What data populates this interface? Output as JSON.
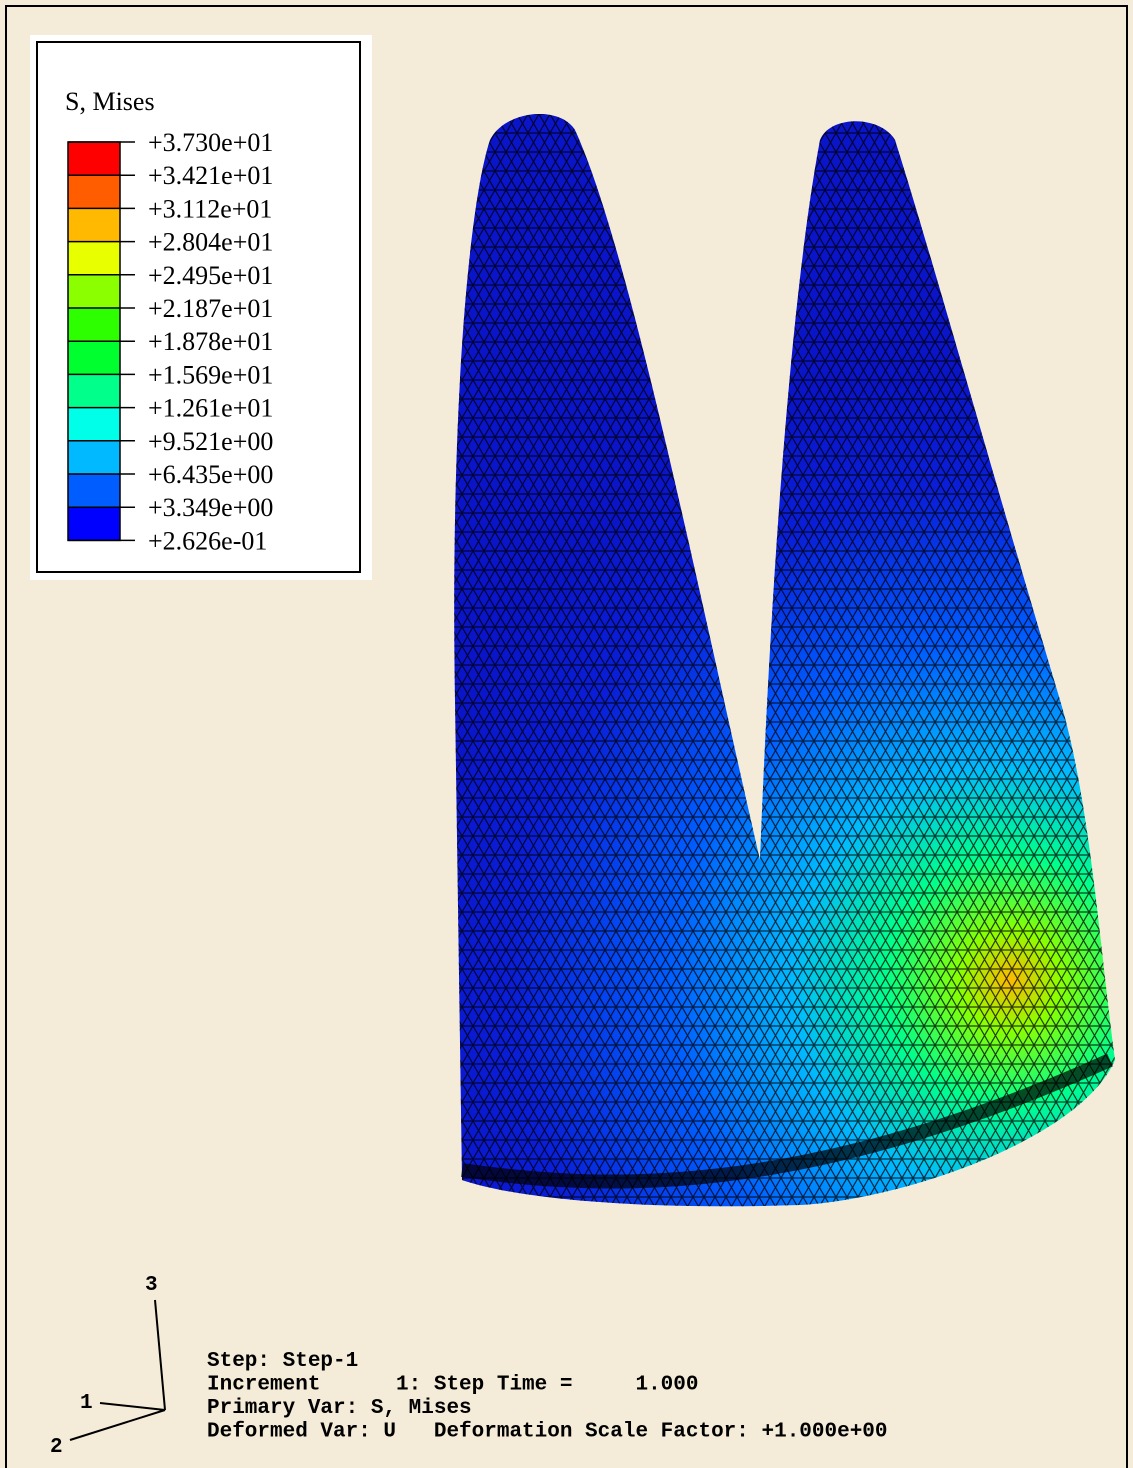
{
  "legend": {
    "title": "S, Mises",
    "labels": [
      "+3.730e+01",
      "+3.421e+01",
      "+3.112e+01",
      "+2.804e+01",
      "+2.495e+01",
      "+2.187e+01",
      "+1.878e+01",
      "+1.569e+01",
      "+1.261e+01",
      "+9.521e+00",
      "+6.435e+00",
      "+3.349e+00",
      "+2.626e-01"
    ],
    "colors": [
      "#ff0000",
      "#ff5d00",
      "#ffb900",
      "#e8ff00",
      "#8bff00",
      "#2eff00",
      "#00ff2e",
      "#00ff8b",
      "#00ffe8",
      "#00b9ff",
      "#005dff",
      "#0000ff"
    ]
  },
  "triad": {
    "axes": [
      "3",
      "1",
      "2"
    ]
  },
  "info": {
    "lines": [
      "Step: Step-1",
      "Increment      1: Step Time =     1.000",
      "Primary Var: S, Mises",
      "Deformed Var: U   Deformation Scale Factor: +1.000e+00"
    ]
  }
}
